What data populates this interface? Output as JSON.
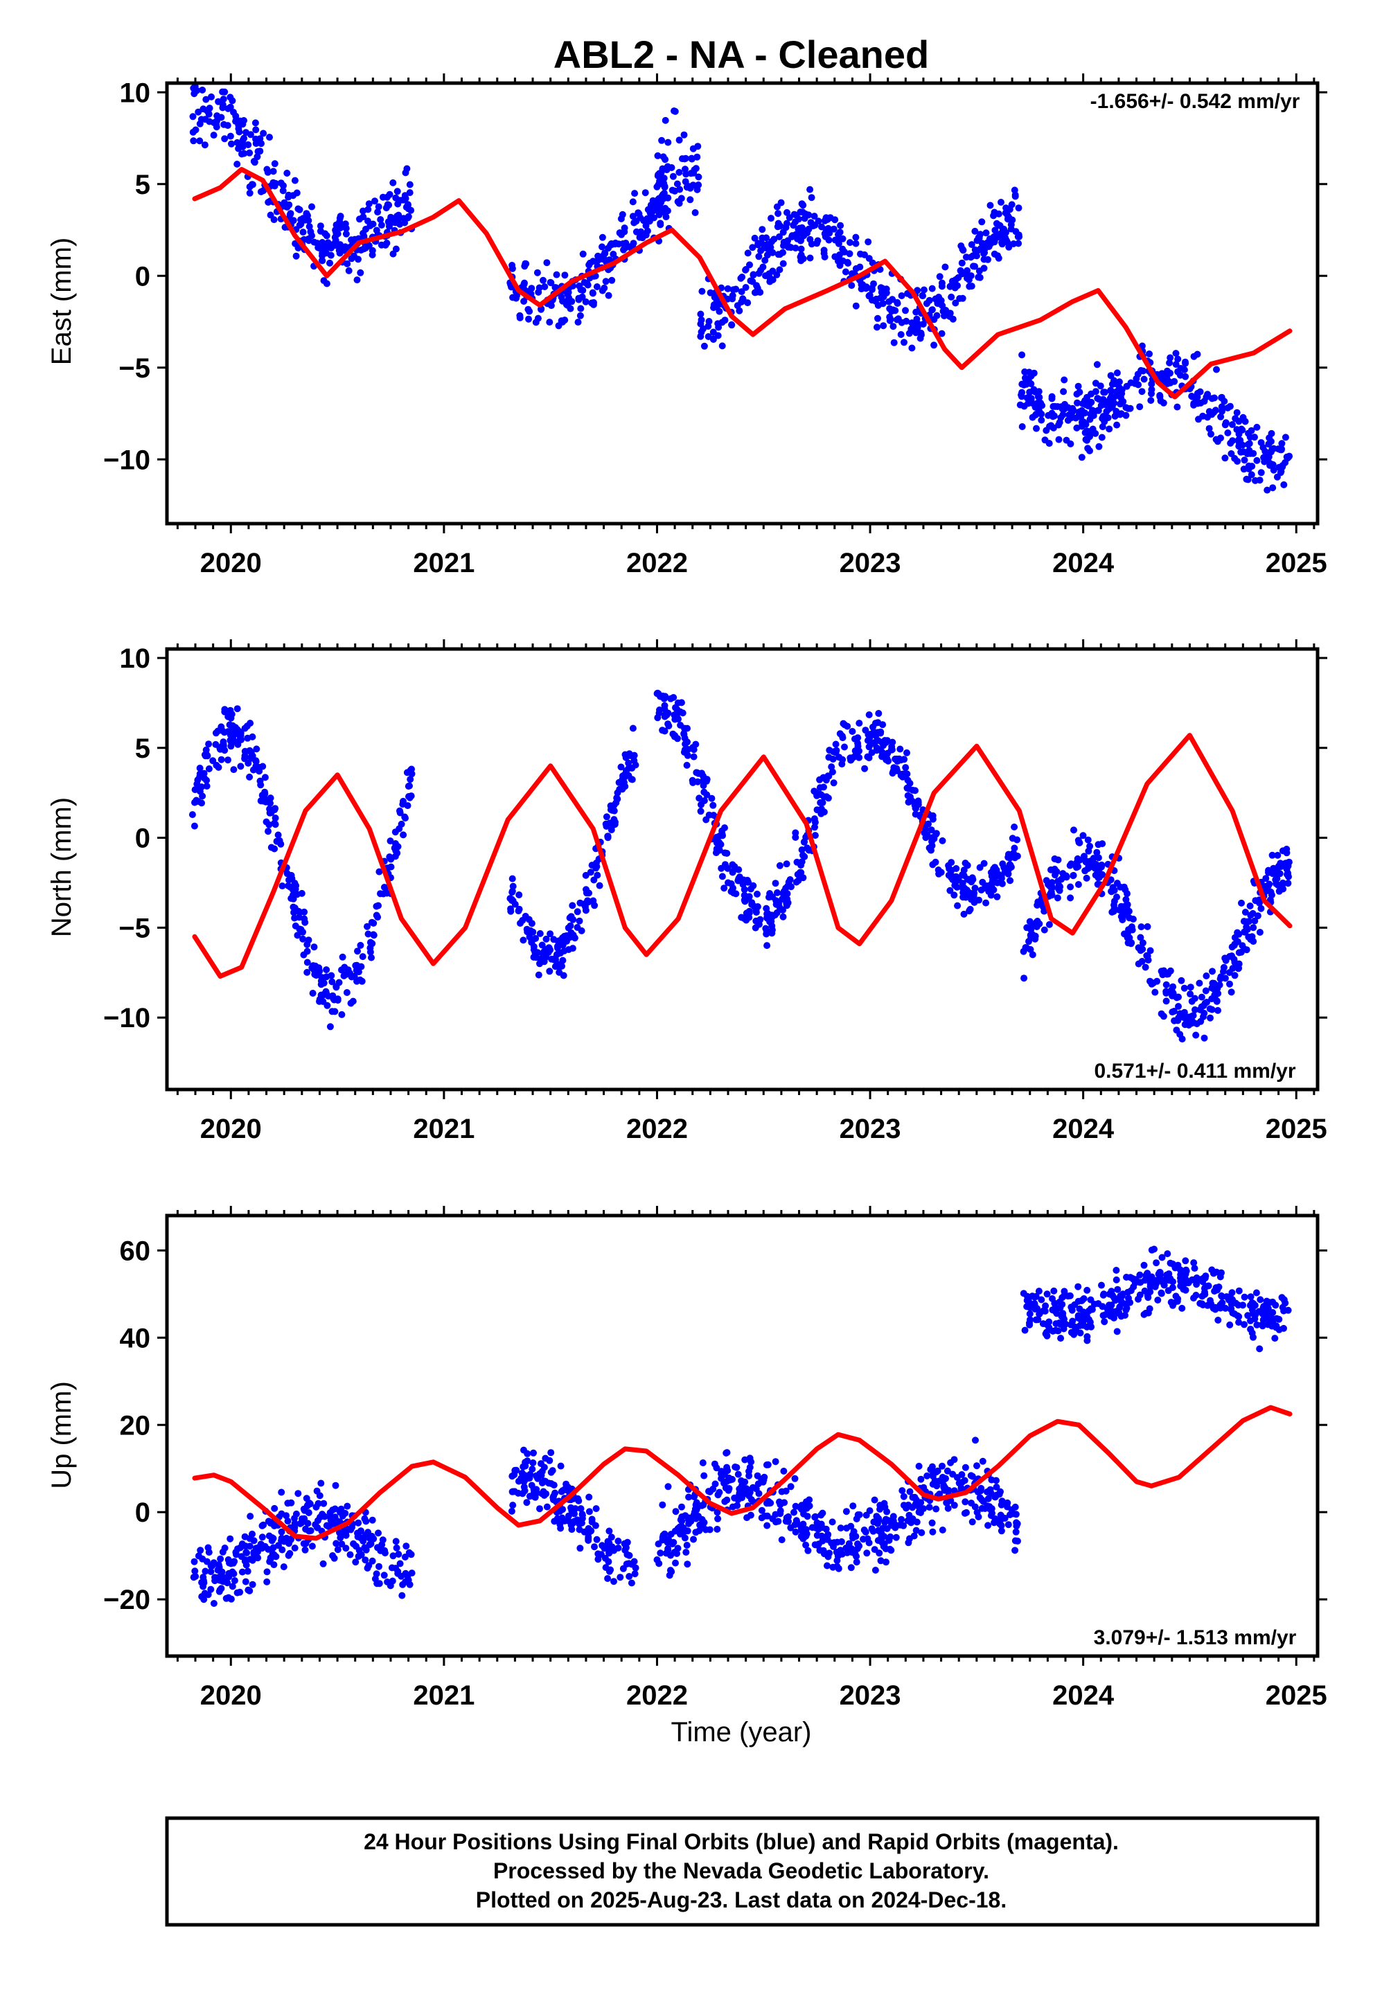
{
  "title": "ABL2  - NA - Cleaned",
  "footer": {
    "lines": [
      "24 Hour Positions Using Final Orbits (blue) and Rapid Orbits (magenta).",
      "Processed by the Nevada Geodetic Laboratory.",
      "Plotted on 2025-Aug-23. Last data on 2024-Dec-18."
    ]
  },
  "colors": {
    "data": "#0000ff",
    "model": "#ff0000",
    "frame": "#000000"
  },
  "chart_data": [
    {
      "type": "scatter",
      "component": "east",
      "ylabel": "East (mm)",
      "xlabel": "",
      "rate_label": "-1.656+/- 0.542 mm/yr",
      "xlim": [
        2019.7,
        2025.1
      ],
      "ylim": [
        -13.5,
        10.5
      ],
      "xticks": [
        2020,
        2021,
        2022,
        2023,
        2024,
        2025
      ],
      "xtick_labels": [
        "2020",
        "2021",
        "2022",
        "2023",
        "2024",
        "2025"
      ],
      "yticks": [
        10,
        5,
        0,
        -5,
        -10
      ],
      "ytick_labels": [
        "10",
        "5",
        "0",
        "−5",
        "−10"
      ],
      "data_segments": [
        {
          "x": [
            2019.82,
            2020.85
          ],
          "trend": [
            7.5,
            1.5
          ],
          "annual_amp": 2.2,
          "annual_phase": 0.1,
          "noise": 1.4
        },
        {
          "x": [
            2021.31,
            2022.05
          ],
          "trend": [
            -1.2,
            3.0
          ],
          "annual_amp": 1.5,
          "annual_phase": 0.9,
          "noise": 1.2
        },
        {
          "x": [
            2022.0,
            2022.2
          ],
          "trend": [
            5.5,
            5.5
          ],
          "annual_amp": 0.0,
          "annual_phase": 0.0,
          "noise": 2.0
        },
        {
          "x": [
            2022.2,
            2023.7
          ],
          "trend": [
            0.0,
            0.5
          ],
          "annual_amp": 2.5,
          "annual_phase": 0.3,
          "noise": 1.3
        },
        {
          "x": [
            2023.7,
            2024.97
          ],
          "trend": [
            -5.5,
            -8.5
          ],
          "annual_amp": 1.8,
          "annual_phase": 0.6,
          "noise": 1.2
        }
      ],
      "model_points": [
        [
          2019.83,
          4.2
        ],
        [
          2019.95,
          4.8
        ],
        [
          2020.05,
          5.8
        ],
        [
          2020.15,
          5.2
        ],
        [
          2020.3,
          2.2
        ],
        [
          2020.45,
          0.0
        ],
        [
          2020.6,
          1.8
        ],
        [
          2020.8,
          2.4
        ],
        [
          2020.95,
          3.2
        ],
        [
          2021.07,
          4.1
        ],
        [
          2021.2,
          2.3
        ],
        [
          2021.35,
          -0.8
        ],
        [
          2021.45,
          -1.6
        ],
        [
          2021.6,
          -0.3
        ],
        [
          2021.8,
          0.7
        ],
        [
          2021.95,
          1.8
        ],
        [
          2022.07,
          2.5
        ],
        [
          2022.2,
          1.0
        ],
        [
          2022.35,
          -2.2
        ],
        [
          2022.45,
          -3.2
        ],
        [
          2022.6,
          -1.8
        ],
        [
          2022.8,
          -0.8
        ],
        [
          2022.95,
          0.0
        ],
        [
          2023.07,
          0.8
        ],
        [
          2023.2,
          -0.9
        ],
        [
          2023.35,
          -4.0
        ],
        [
          2023.43,
          -5.0
        ],
        [
          2023.6,
          -3.2
        ],
        [
          2023.8,
          -2.4
        ],
        [
          2023.95,
          -1.4
        ],
        [
          2024.07,
          -0.8
        ],
        [
          2024.2,
          -2.8
        ],
        [
          2024.35,
          -5.8
        ],
        [
          2024.43,
          -6.6
        ],
        [
          2024.6,
          -4.8
        ],
        [
          2024.8,
          -4.2
        ],
        [
          2024.97,
          -3.0
        ]
      ]
    },
    {
      "type": "scatter",
      "component": "north",
      "ylabel": "North (mm)",
      "xlabel": "",
      "rate_label": "0.571+/- 0.411 mm/yr",
      "xlim": [
        2019.7,
        2025.1
      ],
      "ylim": [
        -14,
        10.5
      ],
      "xticks": [
        2020,
        2021,
        2022,
        2023,
        2024,
        2025
      ],
      "xtick_labels": [
        "2020",
        "2021",
        "2022",
        "2023",
        "2024",
        "2025"
      ],
      "yticks": [
        10,
        5,
        0,
        -5,
        -10
      ],
      "ytick_labels": [
        "10",
        "5",
        "0",
        "−5",
        "−10"
      ],
      "data_segments": [
        {
          "x": [
            2019.82,
            2020.85
          ],
          "trend": [
            -1.8,
            -1.2
          ],
          "annual_amp": 7.5,
          "annual_phase": 0.0,
          "noise": 1.1
        },
        {
          "x": [
            2021.31,
            2021.9
          ],
          "trend": [
            -0.3,
            -0.3
          ],
          "annual_amp": 6.3,
          "annual_phase": 0.0,
          "noise": 1.0
        },
        {
          "x": [
            2022.0,
            2022.9
          ],
          "trend": [
            1.5,
            1.5
          ],
          "annual_amp": 5.8,
          "annual_phase": 0.0,
          "noise": 1.1
        },
        {
          "x": [
            2022.9,
            2023.7
          ],
          "trend": [
            1.2,
            1.2
          ],
          "annual_amp": 4.3,
          "annual_phase": 0.0,
          "noise": 1.0
        },
        {
          "x": [
            2023.72,
            2024.97
          ],
          "trend": [
            -5.5,
            -5.5
          ],
          "annual_amp": 4.2,
          "annual_phase": 0.0,
          "noise": 1.1
        }
      ],
      "model_points": [
        [
          2019.83,
          -5.5
        ],
        [
          2019.95,
          -7.7
        ],
        [
          2020.05,
          -7.2
        ],
        [
          2020.2,
          -3.0
        ],
        [
          2020.35,
          1.5
        ],
        [
          2020.5,
          3.5
        ],
        [
          2020.65,
          0.5
        ],
        [
          2020.8,
          -4.5
        ],
        [
          2020.95,
          -7.0
        ],
        [
          2021.1,
          -5.0
        ],
        [
          2021.3,
          1.0
        ],
        [
          2021.5,
          4.0
        ],
        [
          2021.7,
          0.5
        ],
        [
          2021.85,
          -5.0
        ],
        [
          2021.95,
          -6.5
        ],
        [
          2022.1,
          -4.5
        ],
        [
          2022.3,
          1.5
        ],
        [
          2022.5,
          4.5
        ],
        [
          2022.7,
          0.8
        ],
        [
          2022.85,
          -5.0
        ],
        [
          2022.95,
          -5.9
        ],
        [
          2023.1,
          -3.5
        ],
        [
          2023.3,
          2.5
        ],
        [
          2023.5,
          5.1
        ],
        [
          2023.7,
          1.5
        ],
        [
          2023.85,
          -4.5
        ],
        [
          2023.95,
          -5.3
        ],
        [
          2024.1,
          -2.5
        ],
        [
          2024.3,
          3.0
        ],
        [
          2024.5,
          5.7
        ],
        [
          2024.7,
          1.5
        ],
        [
          2024.85,
          -3.5
        ],
        [
          2024.97,
          -4.9
        ]
      ]
    },
    {
      "type": "scatter",
      "component": "up",
      "ylabel": "Up (mm)",
      "xlabel": "Time (year)",
      "rate_label": "3.079+/- 1.513 mm/yr",
      "xlim": [
        2019.7,
        2025.1
      ],
      "ylim": [
        -33,
        68
      ],
      "xticks": [
        2020,
        2021,
        2022,
        2023,
        2024,
        2025
      ],
      "xtick_labels": [
        "2020",
        "2021",
        "2022",
        "2023",
        "2024",
        "2025"
      ],
      "yticks": [
        60,
        40,
        20,
        0,
        -20
      ],
      "ytick_labels": [
        "60",
        "40",
        "20",
        "0",
        "−20"
      ],
      "data_segments": [
        {
          "x": [
            2019.82,
            2020.85
          ],
          "trend": [
            -8.0,
            -8.0
          ],
          "annual_amp": 6.5,
          "annual_phase": 0.6,
          "noise": 5.5
        },
        {
          "x": [
            2021.31,
            2021.9
          ],
          "trend": [
            -2.0,
            -2.0
          ],
          "annual_amp": 9.5,
          "annual_phase": 0.6,
          "noise": 5.0
        },
        {
          "x": [
            2022.0,
            2022.9
          ],
          "trend": [
            -1.0,
            -1.0
          ],
          "annual_amp": 7.5,
          "annual_phase": 0.6,
          "noise": 5.5
        },
        {
          "x": [
            2022.9,
            2023.7
          ],
          "trend": [
            -1.0,
            -1.0
          ],
          "annual_amp": 7.0,
          "annual_phase": 0.6,
          "noise": 5.5
        },
        {
          "x": [
            2023.72,
            2024.97
          ],
          "trend": [
            49.0,
            49.0
          ],
          "annual_amp": 4.5,
          "annual_phase": 0.6,
          "noise": 4.5
        }
      ],
      "model_points": [
        [
          2019.83,
          7.8
        ],
        [
          2019.92,
          8.5
        ],
        [
          2020.0,
          7.0
        ],
        [
          2020.15,
          1.0
        ],
        [
          2020.3,
          -5.5
        ],
        [
          2020.4,
          -6.0
        ],
        [
          2020.55,
          -2.5
        ],
        [
          2020.7,
          4.5
        ],
        [
          2020.85,
          10.5
        ],
        [
          2020.95,
          11.5
        ],
        [
          2021.1,
          8.0
        ],
        [
          2021.25,
          1.0
        ],
        [
          2021.35,
          -3.0
        ],
        [
          2021.45,
          -2.0
        ],
        [
          2021.6,
          4.0
        ],
        [
          2021.75,
          11.0
        ],
        [
          2021.85,
          14.5
        ],
        [
          2021.95,
          14.0
        ],
        [
          2022.1,
          8.5
        ],
        [
          2022.25,
          2.0
        ],
        [
          2022.35,
          -0.3
        ],
        [
          2022.45,
          1.0
        ],
        [
          2022.6,
          7.5
        ],
        [
          2022.75,
          14.5
        ],
        [
          2022.85,
          17.8
        ],
        [
          2022.95,
          16.5
        ],
        [
          2023.1,
          11.0
        ],
        [
          2023.25,
          4.0
        ],
        [
          2023.32,
          3.0
        ],
        [
          2023.45,
          4.5
        ],
        [
          2023.6,
          10.5
        ],
        [
          2023.75,
          17.5
        ],
        [
          2023.88,
          20.8
        ],
        [
          2023.98,
          20.0
        ],
        [
          2024.12,
          13.5
        ],
        [
          2024.25,
          7.0
        ],
        [
          2024.32,
          6.0
        ],
        [
          2024.45,
          8.0
        ],
        [
          2024.6,
          14.5
        ],
        [
          2024.75,
          21.0
        ],
        [
          2024.88,
          24.0
        ],
        [
          2024.97,
          22.5
        ]
      ]
    }
  ]
}
